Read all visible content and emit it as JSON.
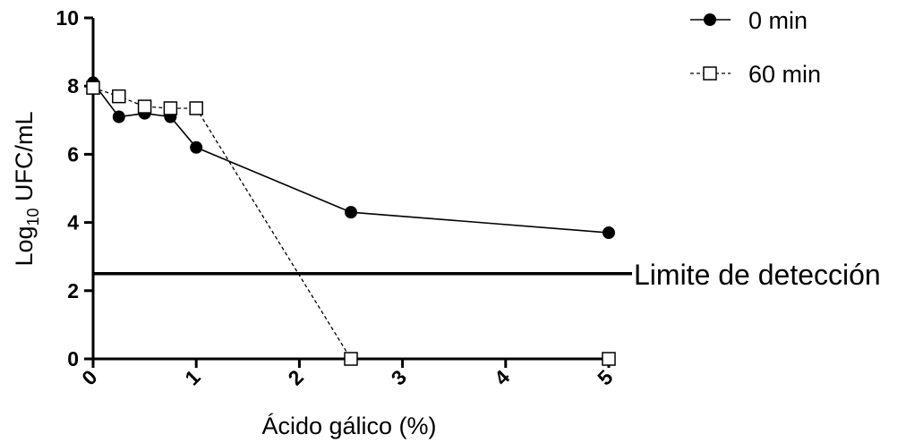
{
  "chart_data": {
    "type": "line",
    "xlabel": "Ácido gálico  (%)",
    "ylabel_main": "Log",
    "ylabel_sub": "10",
    "ylabel_rest": " UFC/mL",
    "xlim": [
      0,
      5
    ],
    "ylim": [
      0,
      10
    ],
    "x_ticks": [
      0,
      1,
      2,
      3,
      4,
      5
    ],
    "y_ticks": [
      0,
      2,
      4,
      6,
      8,
      10
    ],
    "grid": false,
    "legend_position": "top-right",
    "series": [
      {
        "name": "0 min",
        "marker": "filled-circle",
        "line_style": "solid",
        "color": "#000000",
        "x": [
          0,
          0.25,
          0.5,
          0.75,
          1,
          2.5,
          5
        ],
        "y": [
          8.1,
          7.1,
          7.2,
          7.1,
          6.2,
          4.3,
          3.7
        ]
      },
      {
        "name": "60 min",
        "marker": "open-square",
        "line_style": "dashed",
        "color": "#000000",
        "x": [
          0,
          0.25,
          0.5,
          0.75,
          1,
          2.5,
          5
        ],
        "y": [
          7.95,
          7.7,
          7.4,
          7.35,
          7.35,
          0,
          0
        ]
      }
    ],
    "reference_line": {
      "label": "Limite de detección",
      "y": 2.5,
      "color": "#000000"
    }
  }
}
